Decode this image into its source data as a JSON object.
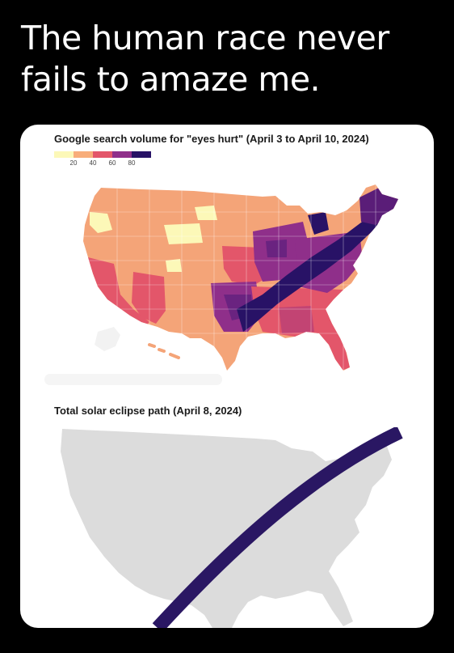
{
  "caption": {
    "line1": "The human race never",
    "line2": "fails to amaze me."
  },
  "search_panel": {
    "title": "Google search volume for \"eyes hurt\"  (April 3 to April 10, 2024)",
    "legend": {
      "ticks": [
        "20",
        "40",
        "60",
        "80"
      ],
      "colors": [
        "#fcf8b8",
        "#f8ad7a",
        "#e3566a",
        "#8f2f8a",
        "#281266"
      ]
    }
  },
  "eclipse_panel": {
    "title": "Total solar eclipse path (April 8, 2024)",
    "map_color": "#dcdcdc",
    "path_color": "#2a1763"
  }
}
